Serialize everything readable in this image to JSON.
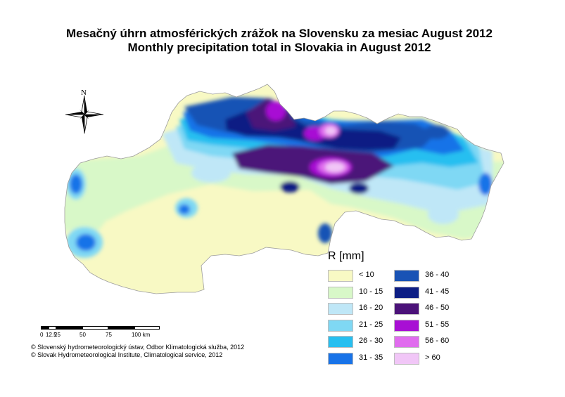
{
  "title_sk": "Mesačný úhrn atmosférických zrážok na Slovensku za mesiac August 2012",
  "title_en": "Monthly precipitation total in Slovakia in August 2012",
  "north_label": "N",
  "legend": {
    "title": "R [mm]",
    "items": [
      {
        "label": "<  10",
        "color": "#f8f9c4"
      },
      {
        "label": "10 - 15",
        "color": "#d8f8c8"
      },
      {
        "label": "16 - 20",
        "color": "#bfe7f7"
      },
      {
        "label": "21 - 25",
        "color": "#7fd8f4"
      },
      {
        "label": "26 - 30",
        "color": "#27bff0"
      },
      {
        "label": "31 - 35",
        "color": "#1873e8"
      },
      {
        "label": "36 - 40",
        "color": "#1953b5"
      },
      {
        "label": "41 - 45",
        "color": "#0d1e84"
      },
      {
        "label": "46 - 50",
        "color": "#4b1279"
      },
      {
        "label": "51 - 55",
        "color": "#a80fd4"
      },
      {
        "label": "56 - 60",
        "color": "#e06cee"
      },
      {
        "label": "> 60",
        "color": "#f1c6f7"
      }
    ]
  },
  "scale": {
    "labels": [
      "0",
      "12.5",
      "25",
      "50",
      "75",
      "100 km"
    ]
  },
  "copyright_sk": "© Slovenský hydrometeorologický ústav, Odbor Klimatologická služba, 2012",
  "copyright_en": "© Slovak Hydrometeorological Institute, Climatological service, 2012"
}
